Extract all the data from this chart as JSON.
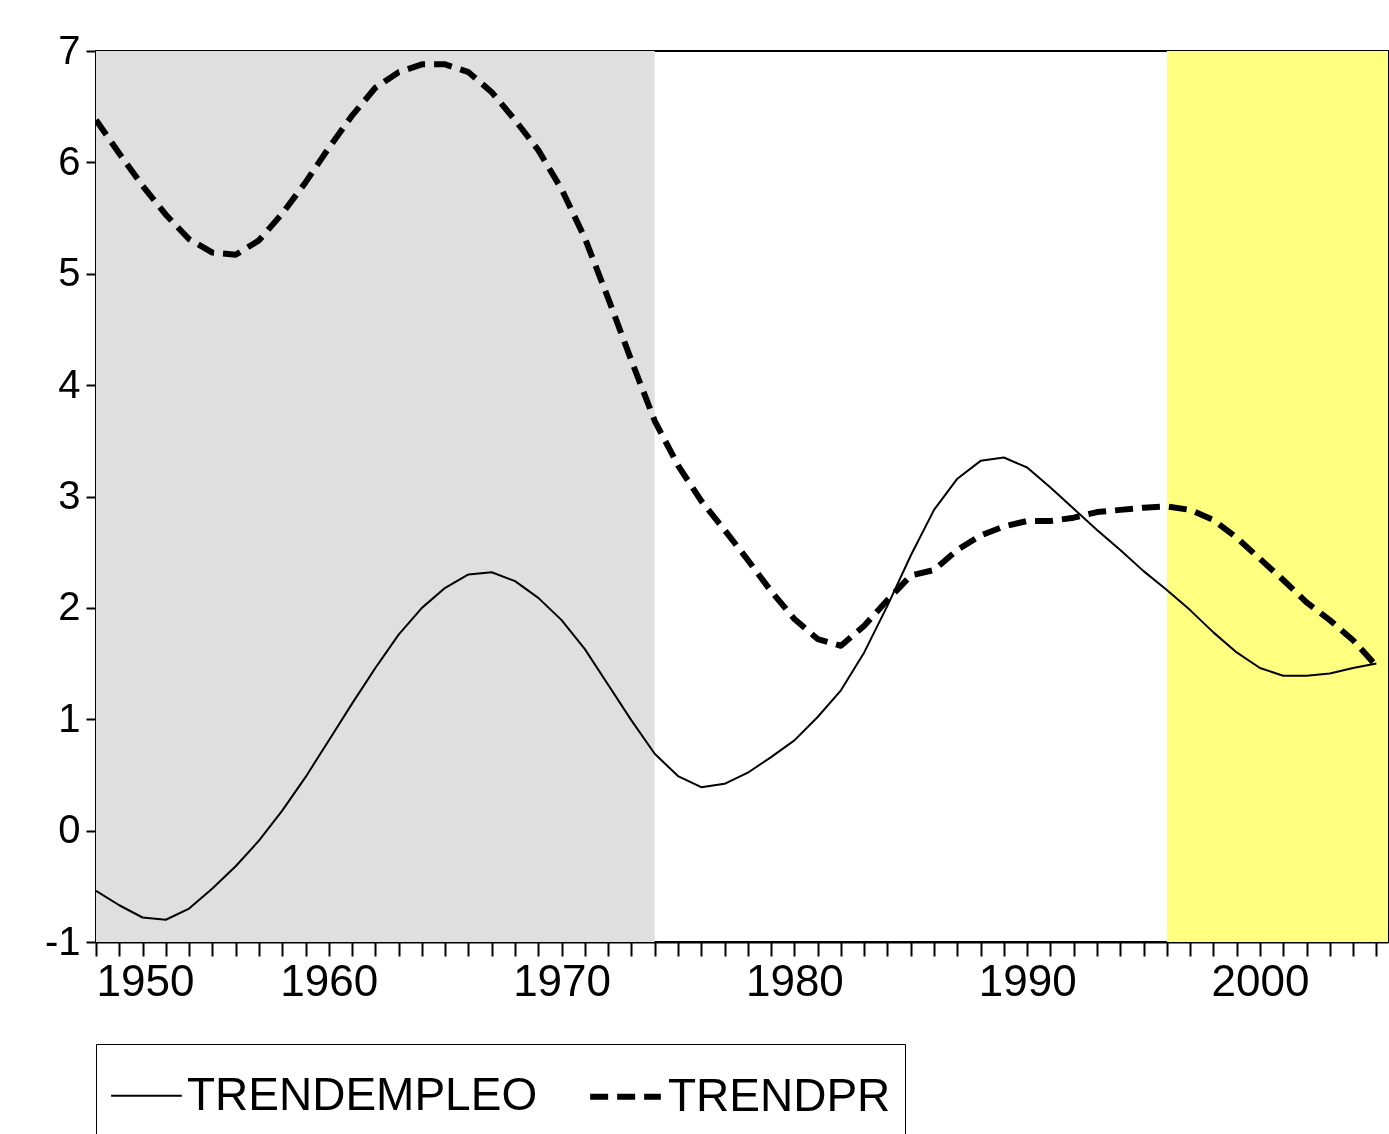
{
  "chart_data": {
    "type": "line",
    "x": [
      1950,
      1951,
      1952,
      1953,
      1954,
      1955,
      1956,
      1957,
      1958,
      1959,
      1960,
      1961,
      1962,
      1963,
      1964,
      1965,
      1966,
      1967,
      1968,
      1969,
      1970,
      1971,
      1972,
      1973,
      1974,
      1975,
      1976,
      1977,
      1978,
      1979,
      1980,
      1981,
      1982,
      1983,
      1984,
      1985,
      1986,
      1987,
      1988,
      1989,
      1990,
      1991,
      1992,
      1993,
      1994,
      1995,
      1996,
      1997,
      1998,
      1999,
      2000,
      2001,
      2002,
      2003,
      2004,
      2005
    ],
    "series": [
      {
        "name": "TRENDEMPLEO",
        "color": "#000000",
        "line_style": "solid",
        "values": [
          -0.54,
          -0.67,
          -0.78,
          -0.8,
          -0.7,
          -0.52,
          -0.32,
          -0.09,
          0.18,
          0.48,
          0.81,
          1.14,
          1.46,
          1.76,
          2.0,
          2.18,
          2.3,
          2.32,
          2.24,
          2.09,
          1.89,
          1.63,
          1.31,
          0.99,
          0.69,
          0.49,
          0.39,
          0.42,
          0.52,
          0.66,
          0.81,
          1.02,
          1.26,
          1.6,
          2.02,
          2.47,
          2.88,
          3.16,
          3.32,
          3.35,
          3.26,
          3.08,
          2.89,
          2.7,
          2.52,
          2.33,
          2.16,
          1.98,
          1.78,
          1.6,
          1.46,
          1.39,
          1.39,
          1.41,
          1.46,
          1.5
        ]
      },
      {
        "name": "TRENDPR",
        "color": "#000000",
        "line_style": "dashed",
        "values": [
          6.38,
          6.08,
          5.79,
          5.53,
          5.31,
          5.19,
          5.17,
          5.3,
          5.54,
          5.82,
          6.13,
          6.42,
          6.67,
          6.81,
          6.88,
          6.88,
          6.81,
          6.63,
          6.38,
          6.11,
          5.76,
          5.32,
          4.78,
          4.22,
          3.68,
          3.28,
          2.96,
          2.7,
          2.43,
          2.15,
          1.9,
          1.72,
          1.66,
          1.84,
          2.07,
          2.29,
          2.34,
          2.52,
          2.65,
          2.73,
          2.78,
          2.78,
          2.81,
          2.86,
          2.88,
          2.9,
          2.91,
          2.88,
          2.79,
          2.63,
          2.44,
          2.25,
          2.05,
          1.89,
          1.71,
          1.48
        ]
      }
    ],
    "xlim": [
      1950,
      2005.5
    ],
    "xticks": [
      1950,
      {
        "value": 1951,
        "label": null
      },
      {
        "value": 1952,
        "label": null
      },
      {
        "value": 1953,
        "label": null
      },
      {
        "value": 1954,
        "label": null
      },
      {
        "value": 1955,
        "label": null
      },
      {
        "value": 1956,
        "label": null
      },
      {
        "value": 1957,
        "label": null
      },
      {
        "value": 1958,
        "label": null
      },
      {
        "value": 1959,
        "label": null
      },
      1960,
      {
        "value": 1961,
        "label": null
      },
      {
        "value": 1962,
        "label": null
      },
      {
        "value": 1963,
        "label": null
      },
      {
        "value": 1964,
        "label": null
      },
      {
        "value": 1965,
        "label": null
      },
      {
        "value": 1966,
        "label": null
      },
      {
        "value": 1967,
        "label": null
      },
      {
        "value": 1968,
        "label": null
      },
      {
        "value": 1969,
        "label": null
      },
      1970,
      {
        "value": 1971,
        "label": null
      },
      {
        "value": 1972,
        "label": null
      },
      {
        "value": 1973,
        "label": null
      },
      {
        "value": 1974,
        "label": null
      },
      {
        "value": 1975,
        "label": null
      },
      {
        "value": 1976,
        "label": null
      },
      {
        "value": 1977,
        "label": null
      },
      {
        "value": 1978,
        "label": null
      },
      {
        "value": 1979,
        "label": null
      },
      1980,
      {
        "value": 1981,
        "label": null
      },
      {
        "value": 1982,
        "label": null
      },
      {
        "value": 1983,
        "label": null
      },
      {
        "value": 1984,
        "label": null
      },
      {
        "value": 1985,
        "label": null
      },
      {
        "value": 1986,
        "label": null
      },
      {
        "value": 1987,
        "label": null
      },
      {
        "value": 1988,
        "label": null
      },
      {
        "value": 1989,
        "label": null
      },
      1990,
      {
        "value": 1991,
        "label": null
      },
      {
        "value": 1992,
        "label": null
      },
      {
        "value": 1993,
        "label": null
      },
      {
        "value": 1994,
        "label": null
      },
      {
        "value": 1995,
        "label": null
      },
      {
        "value": 1996,
        "label": null
      },
      {
        "value": 1997,
        "label": null
      },
      {
        "value": 1998,
        "label": null
      },
      {
        "value": 1999,
        "label": null
      },
      2000,
      {
        "value": 2001,
        "label": null
      },
      {
        "value": 2002,
        "label": null
      },
      {
        "value": 2003,
        "label": null
      },
      {
        "value": 2004,
        "label": null
      },
      {
        "value": 2005,
        "label": null
      }
    ],
    "ylim": [
      -1,
      7
    ],
    "yticks": [
      -1,
      0,
      1,
      2,
      3,
      4,
      5,
      6,
      7
    ],
    "bands": [
      {
        "axis": "x",
        "from": 1950,
        "to": 1974,
        "color": "#dfdfdf"
      },
      {
        "axis": "x",
        "from": 1996,
        "to": 2005.5,
        "color": "#ffff80"
      }
    ],
    "grid": false,
    "legend": "bottom",
    "marker": "none"
  }
}
